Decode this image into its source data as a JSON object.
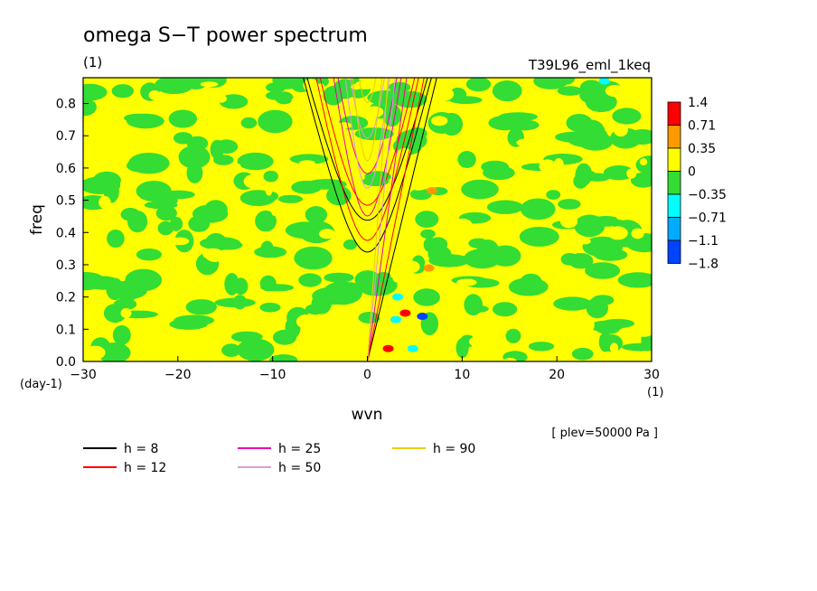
{
  "chart_data": {
    "type": "heatmap",
    "title": "omega S−T power spectrum",
    "units_label": "(1)",
    "run_label": "T39L96_eml_1keq",
    "xlabel": "wvn",
    "ylabel": "freq",
    "x_unit_label": "(1)",
    "y_unit_label": "(day-1)",
    "xlim": [
      -30,
      30
    ],
    "ylim": [
      0.0,
      0.88
    ],
    "x_ticks": [
      -30,
      -20,
      -10,
      0,
      10,
      20,
      30
    ],
    "x_tick_labels": [
      "−30",
      "−20",
      "−10",
      "0",
      "10",
      "20",
      "30"
    ],
    "y_ticks": [
      0.0,
      0.1,
      0.2,
      0.3,
      0.4,
      0.5,
      0.6,
      0.7,
      0.8
    ],
    "y_tick_labels": [
      "0.0",
      "0.1",
      "0.2",
      "0.3",
      "0.4",
      "0.5",
      "0.6",
      "0.7",
      "0.8"
    ],
    "plev_note": "[ plev=50000 Pa ]",
    "colorbar": {
      "labels": [
        "1.4",
        "0.71",
        "0.35",
        "0",
        "−0.35",
        "−0.71",
        "−1.1",
        "−1.8"
      ],
      "colors": [
        "#ff0000",
        "#ff9900",
        "#ffff00",
        "#33dd33",
        "#00ffff",
        "#00aaff",
        "#0044ff"
      ]
    },
    "dispersion_curves": [
      {
        "label": "h = ",
        "value": "8",
        "color": "#000000"
      },
      {
        "label": "h = ",
        "value": "12",
        "color": "#ff0000"
      },
      {
        "label": "h = ",
        "value": "25",
        "color": "#ee00aa"
      },
      {
        "label": "h = ",
        "value": "50",
        "color": "#dd99dd"
      },
      {
        "label": "h = ",
        "value": "90",
        "color": "#eecc00"
      }
    ]
  }
}
